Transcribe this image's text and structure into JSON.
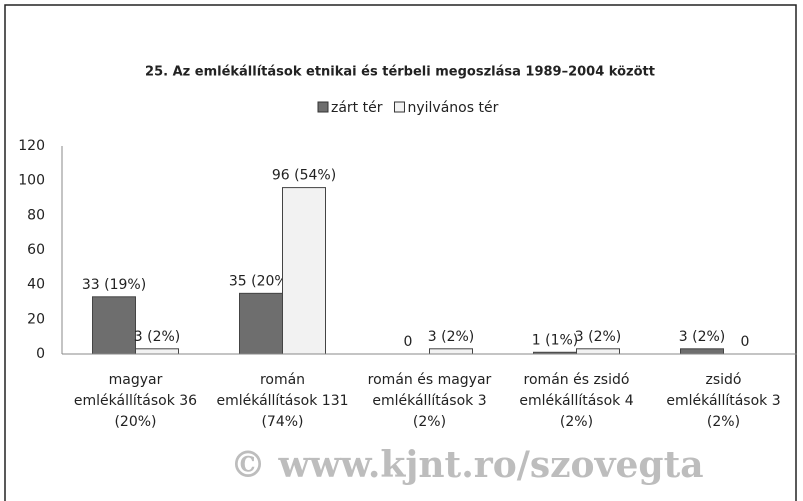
{
  "chart_data": {
    "type": "bar",
    "title": "25. Az emlékállítások etnikai és térbeli megoszlása 1989–2004 között",
    "categories": [
      [
        "magyar",
        "emlékállítások 36",
        "(20%)"
      ],
      [
        "román",
        "emlékállítások 131",
        "(74%)"
      ],
      [
        "román és magyar",
        "emlékállítások 3",
        "(2%)"
      ],
      [
        "román és zsidó",
        "emlékállítások 4",
        "(2%)"
      ],
      [
        "zsidó",
        "emlékállítások 3",
        "(2%)"
      ]
    ],
    "series": [
      {
        "name": "zárt tér",
        "color": "#6e6e6e",
        "values": [
          33,
          35,
          0,
          1,
          3
        ],
        "value_labels": [
          "33 (19%)",
          "35 (20%)",
          "0",
          "1 (1%)",
          "3 (2%)"
        ]
      },
      {
        "name": "nyilvános tér",
        "color": "#f2f2f2",
        "values": [
          3,
          96,
          3,
          3,
          0
        ],
        "value_labels": [
          "3 (2%)",
          "96 (54%)",
          "3 (2%)",
          "3 (2%)",
          "0"
        ]
      }
    ],
    "ylim": [
      0,
      120
    ],
    "yticks": [
      0,
      20,
      40,
      60,
      80,
      100,
      120
    ],
    "grid": false,
    "legend": "top",
    "watermark": "© www.kjnt.ro/szovegta"
  }
}
